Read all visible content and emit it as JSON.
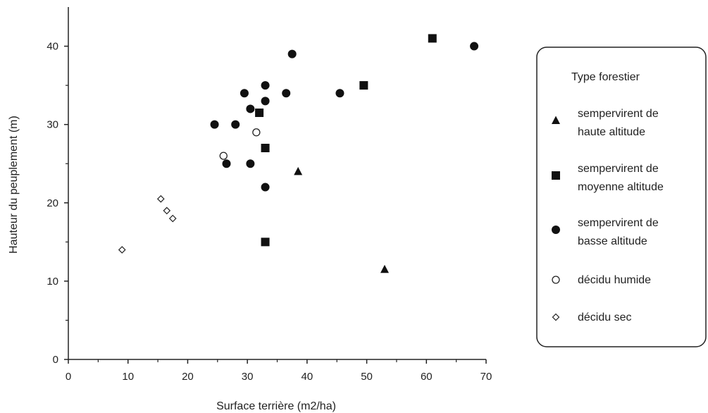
{
  "chart_data": {
    "type": "scatter",
    "xlabel": "Surface terrière (m2/ha)",
    "ylabel": "Hauteur du peuplement (m)",
    "xlim": [
      0,
      70
    ],
    "ylim": [
      0,
      45
    ],
    "xticks": [
      0,
      10,
      20,
      30,
      40,
      50,
      60,
      70
    ],
    "yticks": [
      0,
      10,
      20,
      30,
      40
    ],
    "grid": false,
    "legend": {
      "title": "Type forestier",
      "placement": "right",
      "entries": [
        {
          "line1": "sempervirent de",
          "line2": "haute altitude",
          "marker": "triangle"
        },
        {
          "line1": "sempervirent de",
          "line2": "moyenne altitude",
          "marker": "square"
        },
        {
          "line1": "sempervirent de",
          "line2": "basse altitude",
          "marker": "circle-filled"
        },
        {
          "line1": "décidu humide",
          "line2": "",
          "marker": "circle-open"
        },
        {
          "line1": "décidu sec",
          "line2": "",
          "marker": "diamond-open"
        }
      ]
    },
    "series": [
      {
        "name": "sempervirent de haute altitude",
        "marker": "triangle",
        "points": [
          [
            38.5,
            24
          ],
          [
            53,
            11.5
          ]
        ]
      },
      {
        "name": "sempervirent de moyenne altitude",
        "marker": "square",
        "points": [
          [
            61,
            41
          ],
          [
            49.5,
            35
          ],
          [
            32,
            31.5
          ],
          [
            33,
            27
          ],
          [
            33,
            15
          ]
        ]
      },
      {
        "name": "sempervirent de basse altitude",
        "marker": "circle-filled",
        "points": [
          [
            68,
            40
          ],
          [
            37.5,
            39
          ],
          [
            33,
            35
          ],
          [
            29.5,
            34
          ],
          [
            36.5,
            34
          ],
          [
            45.5,
            34
          ],
          [
            33,
            33
          ],
          [
            30.5,
            32
          ],
          [
            24.5,
            30
          ],
          [
            28,
            30
          ],
          [
            26.5,
            25
          ],
          [
            30.5,
            25
          ],
          [
            33,
            22
          ]
        ]
      },
      {
        "name": "décidu humide",
        "marker": "circle-open",
        "points": [
          [
            31.5,
            29
          ],
          [
            26,
            26
          ]
        ]
      },
      {
        "name": "décidu sec",
        "marker": "diamond-open",
        "points": [
          [
            15.5,
            20.5
          ],
          [
            16.5,
            19
          ],
          [
            17.5,
            18
          ],
          [
            9,
            14
          ]
        ]
      }
    ]
  }
}
